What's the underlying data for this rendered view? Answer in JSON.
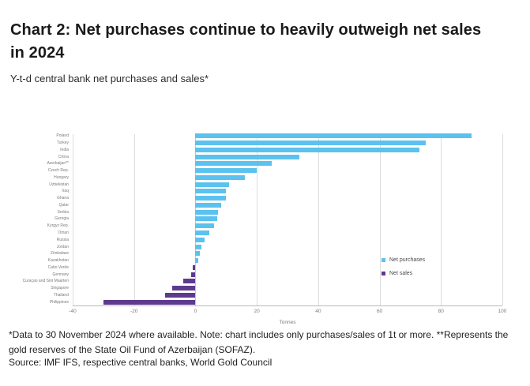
{
  "title": "Chart 2: Net purchases continue to heavily outweigh net sales in 2024",
  "subtitle": "Y-t-d central bank net purchases and sales*",
  "footnote": "*Data to 30 November 2024 where available. Note: chart includes only purchases/sales of 1t or more. **Represents the gold reserves of the State Oil Fund of Azerbaijan (SOFAZ).",
  "source": "Source: IMF IFS, respective central banks, World Gold Council",
  "chart_data": {
    "type": "bar",
    "orientation": "horizontal",
    "title": "Chart 2: Net purchases continue to heavily outweigh net sales in 2024",
    "subtitle": "Y-t-d central bank net purchases and sales*",
    "xlabel": "Tonnes",
    "xlim": [
      -40,
      100
    ],
    "xticks": [
      -40,
      -20,
      0,
      20,
      40,
      60,
      80,
      100
    ],
    "grid": "vertical",
    "legend_position": "inside-right",
    "categories": [
      "Poland",
      "Turkey",
      "India",
      "China",
      "Azerbaijan**",
      "Czech Rep.",
      "Hungary",
      "Uzbekistan",
      "Iraq",
      "Ghana",
      "Qatar",
      "Serbia",
      "Georgia",
      "Kyrgyz Rep.",
      "Oman",
      "Russia",
      "Jordan",
      "Zimbabwe",
      "Kazakhstan",
      "Cabo Verde",
      "Germany",
      "Curaçao and Sint Maarten",
      "Singapore",
      "Thailand",
      "Philippines"
    ],
    "values": [
      90,
      75,
      73,
      34,
      25,
      20,
      16,
      11,
      10,
      10,
      8.5,
      7.5,
      7,
      6,
      4.5,
      3,
      2,
      1.5,
      1,
      -1,
      -1.5,
      -4,
      -7.5,
      -10,
      -30
    ],
    "colors": {
      "net_purchases": "#5BC2EF",
      "net_sales": "#5E3A8E"
    },
    "legend": [
      {
        "label": "Net purchases",
        "color": "#5BC2EF"
      },
      {
        "label": "Net sales",
        "color": "#5E3A8E"
      }
    ]
  }
}
